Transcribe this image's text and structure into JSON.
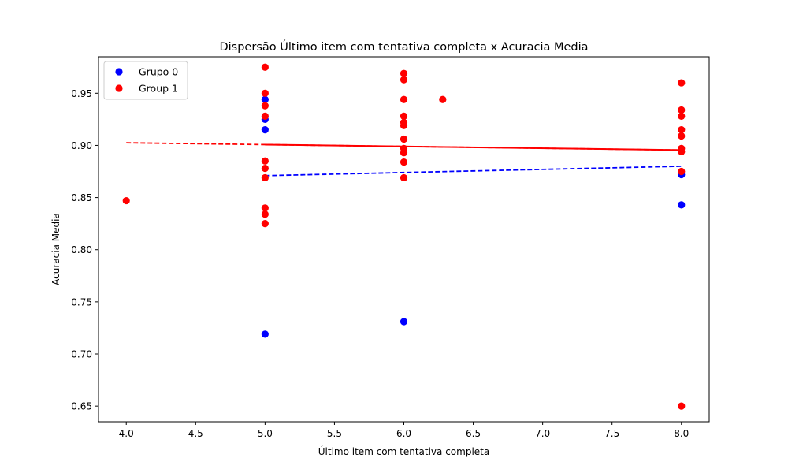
{
  "chart_data": {
    "type": "scatter",
    "title": "Dispersão Último item com tentativa completa x Acuracia Media",
    "xlabel": "Último item com tentativa completa",
    "ylabel": "Acuracia Media",
    "xlim": [
      3.8,
      8.2
    ],
    "ylim": [
      0.635,
      0.985
    ],
    "xticks": [
      4.0,
      4.5,
      5.0,
      5.5,
      6.0,
      6.5,
      7.0,
      7.5,
      8.0
    ],
    "xtick_labels": [
      "4.0",
      "4.5",
      "5.0",
      "5.5",
      "6.0",
      "6.5",
      "7.0",
      "7.5",
      "8.0"
    ],
    "yticks": [
      0.65,
      0.7,
      0.75,
      0.8,
      0.85,
      0.9,
      0.95
    ],
    "ytick_labels": [
      "0.65",
      "0.70",
      "0.75",
      "0.80",
      "0.85",
      "0.90",
      "0.95"
    ],
    "grid": false,
    "legend_position": "top-left",
    "series": [
      {
        "name": "Grupo 0",
        "color": "#0000ff",
        "points": [
          {
            "x": 5.0,
            "y": 0.944
          },
          {
            "x": 5.0,
            "y": 0.925
          },
          {
            "x": 5.0,
            "y": 0.915
          },
          {
            "x": 5.0,
            "y": 0.719
          },
          {
            "x": 6.0,
            "y": 0.731
          },
          {
            "x": 8.0,
            "y": 0.872
          },
          {
            "x": 8.0,
            "y": 0.843
          }
        ],
        "trend": {
          "style": "dashed",
          "points": [
            {
              "x": 5.0,
              "y": 0.871
            },
            {
              "x": 8.0,
              "y": 0.88
            }
          ]
        }
      },
      {
        "name": "Group 1",
        "color": "#ff0000",
        "points": [
          {
            "x": 4.0,
            "y": 0.847
          },
          {
            "x": 5.0,
            "y": 0.975
          },
          {
            "x": 5.0,
            "y": 0.95
          },
          {
            "x": 5.0,
            "y": 0.938
          },
          {
            "x": 5.0,
            "y": 0.928
          },
          {
            "x": 5.0,
            "y": 0.885
          },
          {
            "x": 5.0,
            "y": 0.878
          },
          {
            "x": 5.0,
            "y": 0.869
          },
          {
            "x": 5.0,
            "y": 0.84
          },
          {
            "x": 5.0,
            "y": 0.834
          },
          {
            "x": 5.0,
            "y": 0.825
          },
          {
            "x": 6.0,
            "y": 0.969
          },
          {
            "x": 6.0,
            "y": 0.963
          },
          {
            "x": 6.0,
            "y": 0.944
          },
          {
            "x": 6.0,
            "y": 0.928
          },
          {
            "x": 6.0,
            "y": 0.922
          },
          {
            "x": 6.0,
            "y": 0.919
          },
          {
            "x": 6.0,
            "y": 0.906
          },
          {
            "x": 6.0,
            "y": 0.897
          },
          {
            "x": 6.0,
            "y": 0.893
          },
          {
            "x": 6.0,
            "y": 0.884
          },
          {
            "x": 6.0,
            "y": 0.869
          },
          {
            "x": 6.28,
            "y": 0.944
          },
          {
            "x": 8.0,
            "y": 0.96
          },
          {
            "x": 8.0,
            "y": 0.934
          },
          {
            "x": 8.0,
            "y": 0.928
          },
          {
            "x": 8.0,
            "y": 0.915
          },
          {
            "x": 8.0,
            "y": 0.909
          },
          {
            "x": 8.0,
            "y": 0.897
          },
          {
            "x": 8.0,
            "y": 0.894
          },
          {
            "x": 8.0,
            "y": 0.875
          },
          {
            "x": 8.0,
            "y": 0.65
          }
        ],
        "trend": {
          "style": "solid-over-dashed",
          "points": [
            {
              "x": 4.0,
              "y": 0.9025
            },
            {
              "x": 8.0,
              "y": 0.8955
            }
          ]
        }
      }
    ]
  }
}
